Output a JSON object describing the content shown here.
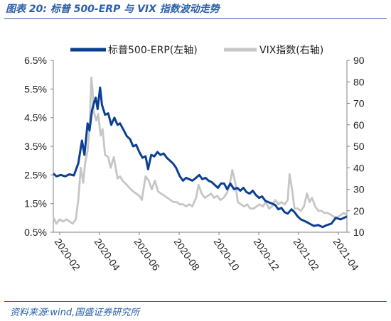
{
  "figure": {
    "title": "图表 20:  标普 500-ERP 与 VIX 指数波动走势",
    "source": "资料来源:wind,国盛证券研究所"
  },
  "colors": {
    "erp": "#0b3f94",
    "vix": "#c6c6c6",
    "axis": "#808080",
    "caption": "#2b5fa8"
  },
  "chart_data": {
    "type": "line",
    "x_ticks": [
      "2020-02",
      "2020-04",
      "2020-06",
      "2020-08",
      "2020-10",
      "2020-12",
      "2021-02",
      "2021-04"
    ],
    "x_range": [
      "2020-01-15",
      "2021-04-30"
    ],
    "y_left": {
      "ticks": [
        "6.5%",
        "5.5%",
        "4.5%",
        "3.5%",
        "2.5%",
        "1.5%",
        "0.5%"
      ],
      "range": [
        0.5,
        6.5
      ],
      "unit": "%"
    },
    "y_right": {
      "ticks": [
        "90",
        "80",
        "70",
        "60",
        "50",
        "40",
        "30",
        "20",
        "10"
      ],
      "range": [
        10,
        90
      ]
    },
    "legend_position": "top",
    "series": [
      {
        "name": "标普500-ERP(左轴)",
        "axis": "left",
        "points": [
          [
            "2020-01-15",
            2.55
          ],
          [
            "2020-01-20",
            2.45
          ],
          [
            "2020-01-27",
            2.5
          ],
          [
            "2020-02-03",
            2.45
          ],
          [
            "2020-02-10",
            2.52
          ],
          [
            "2020-02-17",
            2.48
          ],
          [
            "2020-02-24",
            2.9
          ],
          [
            "2020-03-01",
            3.7
          ],
          [
            "2020-03-05",
            3.2
          ],
          [
            "2020-03-10",
            4.3
          ],
          [
            "2020-03-13",
            4.05
          ],
          [
            "2020-03-17",
            4.75
          ],
          [
            "2020-03-20",
            5.0
          ],
          [
            "2020-03-23",
            5.2
          ],
          [
            "2020-03-26",
            4.8
          ],
          [
            "2020-03-30",
            5.55
          ],
          [
            "2020-04-02",
            4.95
          ],
          [
            "2020-04-07",
            4.6
          ],
          [
            "2020-04-12",
            4.65
          ],
          [
            "2020-04-17",
            4.25
          ],
          [
            "2020-04-22",
            4.5
          ],
          [
            "2020-04-27",
            4.25
          ],
          [
            "2020-05-01",
            4.3
          ],
          [
            "2020-05-06",
            4.1
          ],
          [
            "2020-05-12",
            3.85
          ],
          [
            "2020-05-17",
            3.75
          ],
          [
            "2020-05-22",
            3.5
          ],
          [
            "2020-05-27",
            3.55
          ],
          [
            "2020-06-01",
            3.3
          ],
          [
            "2020-06-06",
            3.1
          ],
          [
            "2020-06-11",
            3.15
          ],
          [
            "2020-06-15",
            2.7
          ],
          [
            "2020-06-20",
            3.2
          ],
          [
            "2020-06-25",
            3.15
          ],
          [
            "2020-06-30",
            3.3
          ],
          [
            "2020-07-05",
            3.2
          ],
          [
            "2020-07-10",
            3.25
          ],
          [
            "2020-07-15",
            3.1
          ],
          [
            "2020-07-20",
            3.0
          ],
          [
            "2020-07-25",
            2.9
          ],
          [
            "2020-07-30",
            2.75
          ],
          [
            "2020-08-05",
            2.45
          ],
          [
            "2020-08-10",
            2.3
          ],
          [
            "2020-08-15",
            2.4
          ],
          [
            "2020-08-20",
            2.35
          ],
          [
            "2020-08-25",
            2.3
          ],
          [
            "2020-08-31",
            2.4
          ],
          [
            "2020-09-05",
            2.5
          ],
          [
            "2020-09-10",
            2.35
          ],
          [
            "2020-09-15",
            2.4
          ],
          [
            "2020-09-20",
            2.3
          ],
          [
            "2020-09-25",
            2.25
          ],
          [
            "2020-09-30",
            2.15
          ],
          [
            "2020-10-05",
            2.05
          ],
          [
            "2020-10-10",
            2.2
          ],
          [
            "2020-10-15",
            2.2
          ],
          [
            "2020-10-20",
            2.0
          ],
          [
            "2020-10-25",
            2.2
          ],
          [
            "2020-10-31",
            2.0
          ],
          [
            "2020-11-05",
            2.05
          ],
          [
            "2020-11-10",
            1.95
          ],
          [
            "2020-11-15",
            2.05
          ],
          [
            "2020-11-20",
            1.9
          ],
          [
            "2020-11-25",
            1.85
          ],
          [
            "2020-11-30",
            1.95
          ],
          [
            "2020-12-05",
            1.8
          ],
          [
            "2020-12-10",
            1.7
          ],
          [
            "2020-12-15",
            1.75
          ],
          [
            "2020-12-20",
            1.6
          ],
          [
            "2020-12-25",
            1.55
          ],
          [
            "2020-12-31",
            1.5
          ],
          [
            "2021-01-05",
            1.45
          ],
          [
            "2021-01-10",
            1.3
          ],
          [
            "2021-01-15",
            1.35
          ],
          [
            "2021-01-20",
            1.2
          ],
          [
            "2021-01-25",
            1.15
          ],
          [
            "2021-01-31",
            1.3
          ],
          [
            "2021-02-05",
            1.2
          ],
          [
            "2021-02-10",
            1.05
          ],
          [
            "2021-02-15",
            0.95
          ],
          [
            "2021-02-20",
            0.9
          ],
          [
            "2021-02-25",
            0.85
          ],
          [
            "2021-03-01",
            0.8
          ],
          [
            "2021-03-08",
            0.72
          ],
          [
            "2021-03-15",
            0.75
          ],
          [
            "2021-03-22",
            0.68
          ],
          [
            "2021-03-29",
            0.75
          ],
          [
            "2021-04-05",
            0.8
          ],
          [
            "2021-04-12",
            1.0
          ],
          [
            "2021-04-20",
            0.95
          ],
          [
            "2021-04-30",
            1.05
          ]
        ]
      },
      {
        "name": "VIX指数(右轴)",
        "axis": "right",
        "points": [
          [
            "2020-01-15",
            17
          ],
          [
            "2020-01-20",
            14
          ],
          [
            "2020-01-25",
            16
          ],
          [
            "2020-01-31",
            15
          ],
          [
            "2020-02-05",
            16
          ],
          [
            "2020-02-10",
            15
          ],
          [
            "2020-02-15",
            14
          ],
          [
            "2020-02-20",
            16
          ],
          [
            "2020-02-24",
            25
          ],
          [
            "2020-02-28",
            40
          ],
          [
            "2020-03-03",
            33
          ],
          [
            "2020-03-06",
            42
          ],
          [
            "2020-03-10",
            48
          ],
          [
            "2020-03-13",
            58
          ],
          [
            "2020-03-16",
            82
          ],
          [
            "2020-03-18",
            76
          ],
          [
            "2020-03-20",
            66
          ],
          [
            "2020-03-24",
            62
          ],
          [
            "2020-03-27",
            65
          ],
          [
            "2020-03-31",
            55
          ],
          [
            "2020-04-03",
            58
          ],
          [
            "2020-04-07",
            46
          ],
          [
            "2020-04-12",
            45
          ],
          [
            "2020-04-16",
            40
          ],
          [
            "2020-04-21",
            45
          ],
          [
            "2020-04-27",
            35
          ],
          [
            "2020-05-01",
            36
          ],
          [
            "2020-05-05",
            34
          ],
          [
            "2020-05-12",
            32
          ],
          [
            "2020-05-15",
            31
          ],
          [
            "2020-05-22",
            29
          ],
          [
            "2020-05-27",
            28
          ],
          [
            "2020-06-01",
            27
          ],
          [
            "2020-06-05",
            25
          ],
          [
            "2020-06-11",
            36
          ],
          [
            "2020-06-16",
            34
          ],
          [
            "2020-06-21",
            30
          ],
          [
            "2020-06-26",
            34
          ],
          [
            "2020-07-01",
            29
          ],
          [
            "2020-07-06",
            28
          ],
          [
            "2020-07-11",
            27
          ],
          [
            "2020-07-16",
            26
          ],
          [
            "2020-07-21",
            25
          ],
          [
            "2020-07-26",
            24
          ],
          [
            "2020-07-31",
            24
          ],
          [
            "2020-08-05",
            23
          ],
          [
            "2020-08-10",
            23
          ],
          [
            "2020-08-15",
            22
          ],
          [
            "2020-08-20",
            23
          ],
          [
            "2020-08-25",
            22
          ],
          [
            "2020-08-31",
            26
          ],
          [
            "2020-09-04",
            32
          ],
          [
            "2020-09-09",
            28
          ],
          [
            "2020-09-14",
            26
          ],
          [
            "2020-09-19",
            27
          ],
          [
            "2020-09-24",
            28
          ],
          [
            "2020-09-29",
            26
          ],
          [
            "2020-10-04",
            27
          ],
          [
            "2020-10-09",
            25
          ],
          [
            "2020-10-14",
            26
          ],
          [
            "2020-10-19",
            28
          ],
          [
            "2020-10-24",
            32
          ],
          [
            "2020-10-28",
            39
          ],
          [
            "2020-11-02",
            33
          ],
          [
            "2020-11-06",
            24
          ],
          [
            "2020-11-11",
            23
          ],
          [
            "2020-11-16",
            22
          ],
          [
            "2020-11-21",
            23
          ],
          [
            "2020-11-26",
            21
          ],
          [
            "2020-12-01",
            21
          ],
          [
            "2020-12-06",
            22
          ],
          [
            "2020-12-11",
            23
          ],
          [
            "2020-12-16",
            22
          ],
          [
            "2020-12-21",
            24
          ],
          [
            "2020-12-26",
            21
          ],
          [
            "2020-12-31",
            22
          ],
          [
            "2021-01-05",
            25
          ],
          [
            "2021-01-10",
            23
          ],
          [
            "2021-01-15",
            24
          ],
          [
            "2021-01-20",
            23
          ],
          [
            "2021-01-25",
            25
          ],
          [
            "2021-01-28",
            37
          ],
          [
            "2021-02-01",
            30
          ],
          [
            "2021-02-05",
            21
          ],
          [
            "2021-02-10",
            21
          ],
          [
            "2021-02-15",
            20
          ],
          [
            "2021-02-20",
            22
          ],
          [
            "2021-02-25",
            28
          ],
          [
            "2021-03-01",
            24
          ],
          [
            "2021-03-05",
            26
          ],
          [
            "2021-03-10",
            22
          ],
          [
            "2021-03-15",
            20
          ],
          [
            "2021-03-20",
            20
          ],
          [
            "2021-03-25",
            19
          ],
          [
            "2021-03-30",
            19
          ],
          [
            "2021-04-05",
            18
          ],
          [
            "2021-04-10",
            17
          ],
          [
            "2021-04-15",
            17
          ],
          [
            "2021-04-20",
            18
          ],
          [
            "2021-04-25",
            19
          ],
          [
            "2021-04-30",
            18
          ]
        ]
      }
    ]
  }
}
